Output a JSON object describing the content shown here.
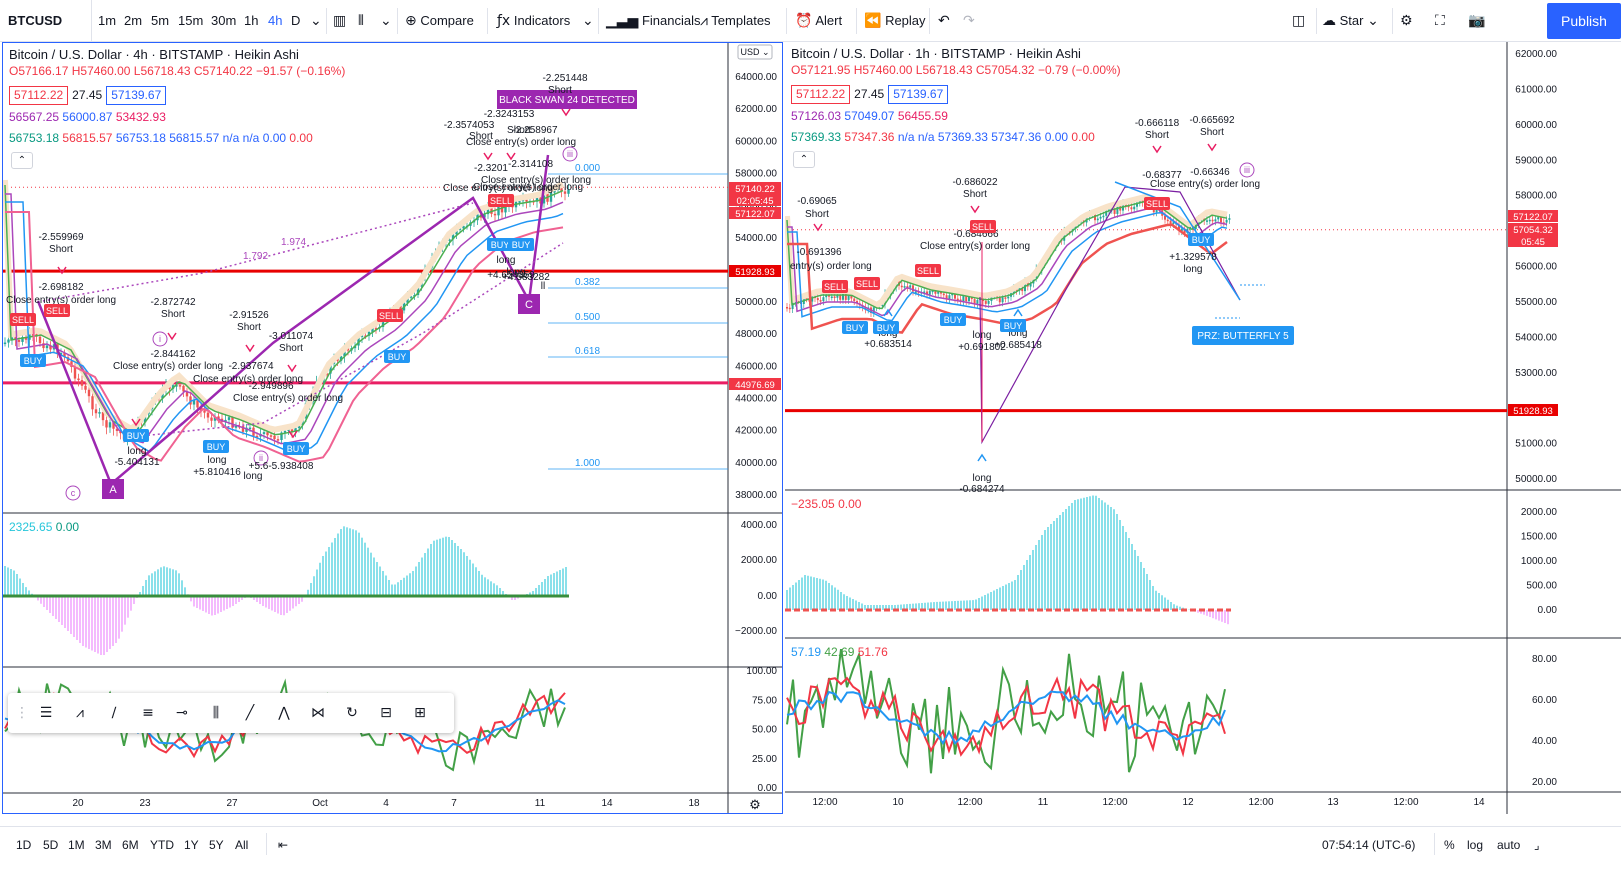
{
  "toolbar": {
    "symbol": "BTCUSD",
    "intervals": [
      "1m",
      "2m",
      "5m",
      "15m",
      "30m",
      "1h",
      "4h",
      "D"
    ],
    "active_interval": "4h",
    "compare_label": "Compare",
    "indicators_label": "Indicators",
    "financials_label": "Financials",
    "templates_label": "Templates",
    "alert_label": "Alert",
    "replay_label": "Replay",
    "star_label": "Star",
    "publish_label": "Publish"
  },
  "left_chart": {
    "title": "Bitcoin / U.S. Dollar · 4h · BITSTAMP · Heikin Ashi",
    "ohlc": {
      "o": "O57166.17",
      "h": "H57460.00",
      "l": "L56718.43",
      "c": "C57140.22",
      "chg": "−91.57 (−0.16%)"
    },
    "bid": "57112.22",
    "spread": "27.45",
    "ask": "57139.67",
    "ind1": [
      "56567.25",
      "56000.87",
      "53432.93"
    ],
    "ind2": [
      "56753.18",
      "56815.57",
      "56753.18",
      "56815.57",
      "n/a",
      "n/a",
      "0.00",
      "0.00"
    ],
    "currency": "USD",
    "price_axis": [
      "64000.00",
      "62000.00",
      "60000.00",
      "58000.00",
      "56000.00",
      "54000.00",
      "52000.00",
      "50000.00",
      "48000.00",
      "46000.00",
      "44000.00",
      "42000.00",
      "40000.00",
      "38000.00"
    ],
    "price_tags": [
      {
        "text": "57140.22",
        "color": "#f23645"
      },
      {
        "text": "02:05:45",
        "color": "#f23645"
      },
      {
        "text": "57122.07",
        "color": "#f23645"
      },
      {
        "text": "51928.93",
        "color": "#e80000"
      },
      {
        "text": "44976.69",
        "color": "#f23645"
      }
    ],
    "osc_legend": [
      "2325.65",
      "0.00"
    ],
    "osc_axis": [
      "4000.00",
      "2000.00",
      "0.00",
      "−2000.00"
    ],
    "rsi_axis": [
      "100.00",
      "75.00",
      "50.00",
      "25.00",
      "0.00"
    ],
    "time_axis": [
      "20",
      "23",
      "27",
      "Oct",
      "4",
      "7",
      "11",
      "14",
      "18"
    ],
    "banner": "BLACK SWAN 24 DETECTED",
    "fib_levels": [
      "0.000",
      "0.382",
      "0.500",
      "0.618",
      "1.000"
    ],
    "fib_misc": [
      "1.792",
      "1.974"
    ],
    "annotations": [
      "-2.251448",
      "Short",
      "-2.3243153",
      "-2.3574053",
      "Short",
      "-2.258967",
      "Short",
      "Close entry(s) order long",
      "-2.314108",
      "-2.3201",
      "Close entry(s) order long",
      "Close entry(s) order long",
      "Close entry(s) order long",
      "-2.559969",
      "Short",
      "-2.698182",
      "Close entry(s) order long",
      "-2.872742",
      "Short",
      "-2.844162",
      "-2.91526",
      "Short",
      "-3.011074",
      "Short",
      "Close entry(s) order long",
      "-2.937674",
      "Close entry(s) order long",
      "-2.949896",
      "Close entry(s) order long",
      "long",
      "-5.404131",
      "long",
      "+5.810416",
      "long",
      "+5.6-5.938408",
      "long",
      "long",
      "+4.654359",
      "+4.583282",
      "ll"
    ],
    "wave_labels": [
      "A",
      "C",
      "i",
      "ii",
      "iii",
      "c"
    ],
    "signals": [
      "SELL",
      "SELL",
      "BUY",
      "BUY",
      "BUY",
      "BUY",
      "SELL",
      "BUY",
      "SELL",
      "BUY",
      "BUY"
    ]
  },
  "right_chart": {
    "title": "Bitcoin / U.S. Dollar · 1h · BITSTAMP · Heikin Ashi",
    "ohlc": {
      "o": "O57121.95",
      "h": "H57460.00",
      "l": "L56718.43",
      "c": "C57054.32",
      "chg": "−0.79 (−0.00%)"
    },
    "bid": "57112.22",
    "spread": "27.45",
    "ask": "57139.67",
    "ind1": [
      "57126.03",
      "57049.07",
      "56455.59"
    ],
    "ind2": [
      "57369.33",
      "57347.36",
      "n/a",
      "n/a",
      "57369.33",
      "57347.36",
      "0.00",
      "0.00"
    ],
    "price_axis": [
      "62000.00",
      "61000.00",
      "60000.00",
      "59000.00",
      "58000.00",
      "57000.00",
      "56000.00",
      "55000.00",
      "54000.00",
      "53000.00",
      "52000.00",
      "51000.00",
      "50000.00"
    ],
    "price_tags": [
      {
        "text": "57122.07",
        "color": "#f23645"
      },
      {
        "text": "57054.32",
        "color": "#f23645"
      },
      {
        "text": "05:45",
        "color": "#f23645"
      },
      {
        "text": "51928.93",
        "color": "#e80000"
      }
    ],
    "osc_legend": [
      "−235.05",
      "0.00"
    ],
    "osc_axis": [
      "2000.00",
      "1500.00",
      "1000.00",
      "500.00",
      "0.00"
    ],
    "rsi_legend": [
      "57.19",
      "42.69",
      "51.76"
    ],
    "rsi_axis": [
      "80.00",
      "60.00",
      "40.00",
      "20.00"
    ],
    "time_axis": [
      "12:00",
      "10",
      "12:00",
      "11",
      "12:00",
      "12",
      "12:00",
      "13",
      "12:00",
      "14"
    ],
    "prz_label": "PRZ: BUTTERFLY 5",
    "annotations": [
      "-0.666118",
      "Short",
      "-0.665692",
      "Short",
      "-0.68377",
      "-0.66346",
      "Close entry(s) order long",
      "-0.686022",
      "Short",
      "-0.69065",
      "Short",
      "-0.691396",
      "entry(s) order long",
      "-0.684666",
      "Close entry(s) order long",
      "+0.683514",
      "long",
      "+0.691802",
      "long",
      "+0.685418",
      "long",
      "long",
      "+1.329578",
      "long",
      "-0.684274"
    ],
    "signals": [
      "SELL",
      "SELL",
      "SELL",
      "SELL",
      "BUY",
      "BUY",
      "BUY",
      "BUY",
      "BUY",
      "SELL"
    ]
  },
  "bottombar": {
    "ranges": [
      "1D",
      "5D",
      "1M",
      "3M",
      "6M",
      "YTD",
      "1Y",
      "5Y",
      "All"
    ],
    "clock": "07:54:14 (UTC-6)",
    "pct_label": "%",
    "log_label": "log",
    "auto_label": "auto"
  },
  "drawing_tools": [
    "trend-line",
    "pitchfork",
    "fib",
    "channel",
    "horizontal",
    "range",
    "ruler",
    "line",
    "path",
    "xabcd",
    "cycle",
    "gann",
    "measure"
  ]
}
